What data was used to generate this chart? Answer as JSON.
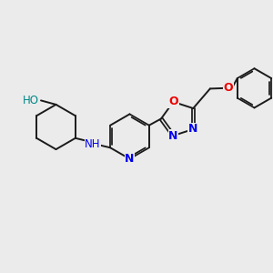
{
  "bg_color": "#ebebeb",
  "bond_color": "#1a1a1a",
  "bw": 1.4,
  "N_color": "#0000ee",
  "O_color": "#ee0000",
  "OH_color": "#008888",
  "figsize": [
    3.0,
    3.0
  ],
  "dpi": 100,
  "xlim": [
    0,
    10
  ],
  "ylim": [
    0,
    10
  ]
}
